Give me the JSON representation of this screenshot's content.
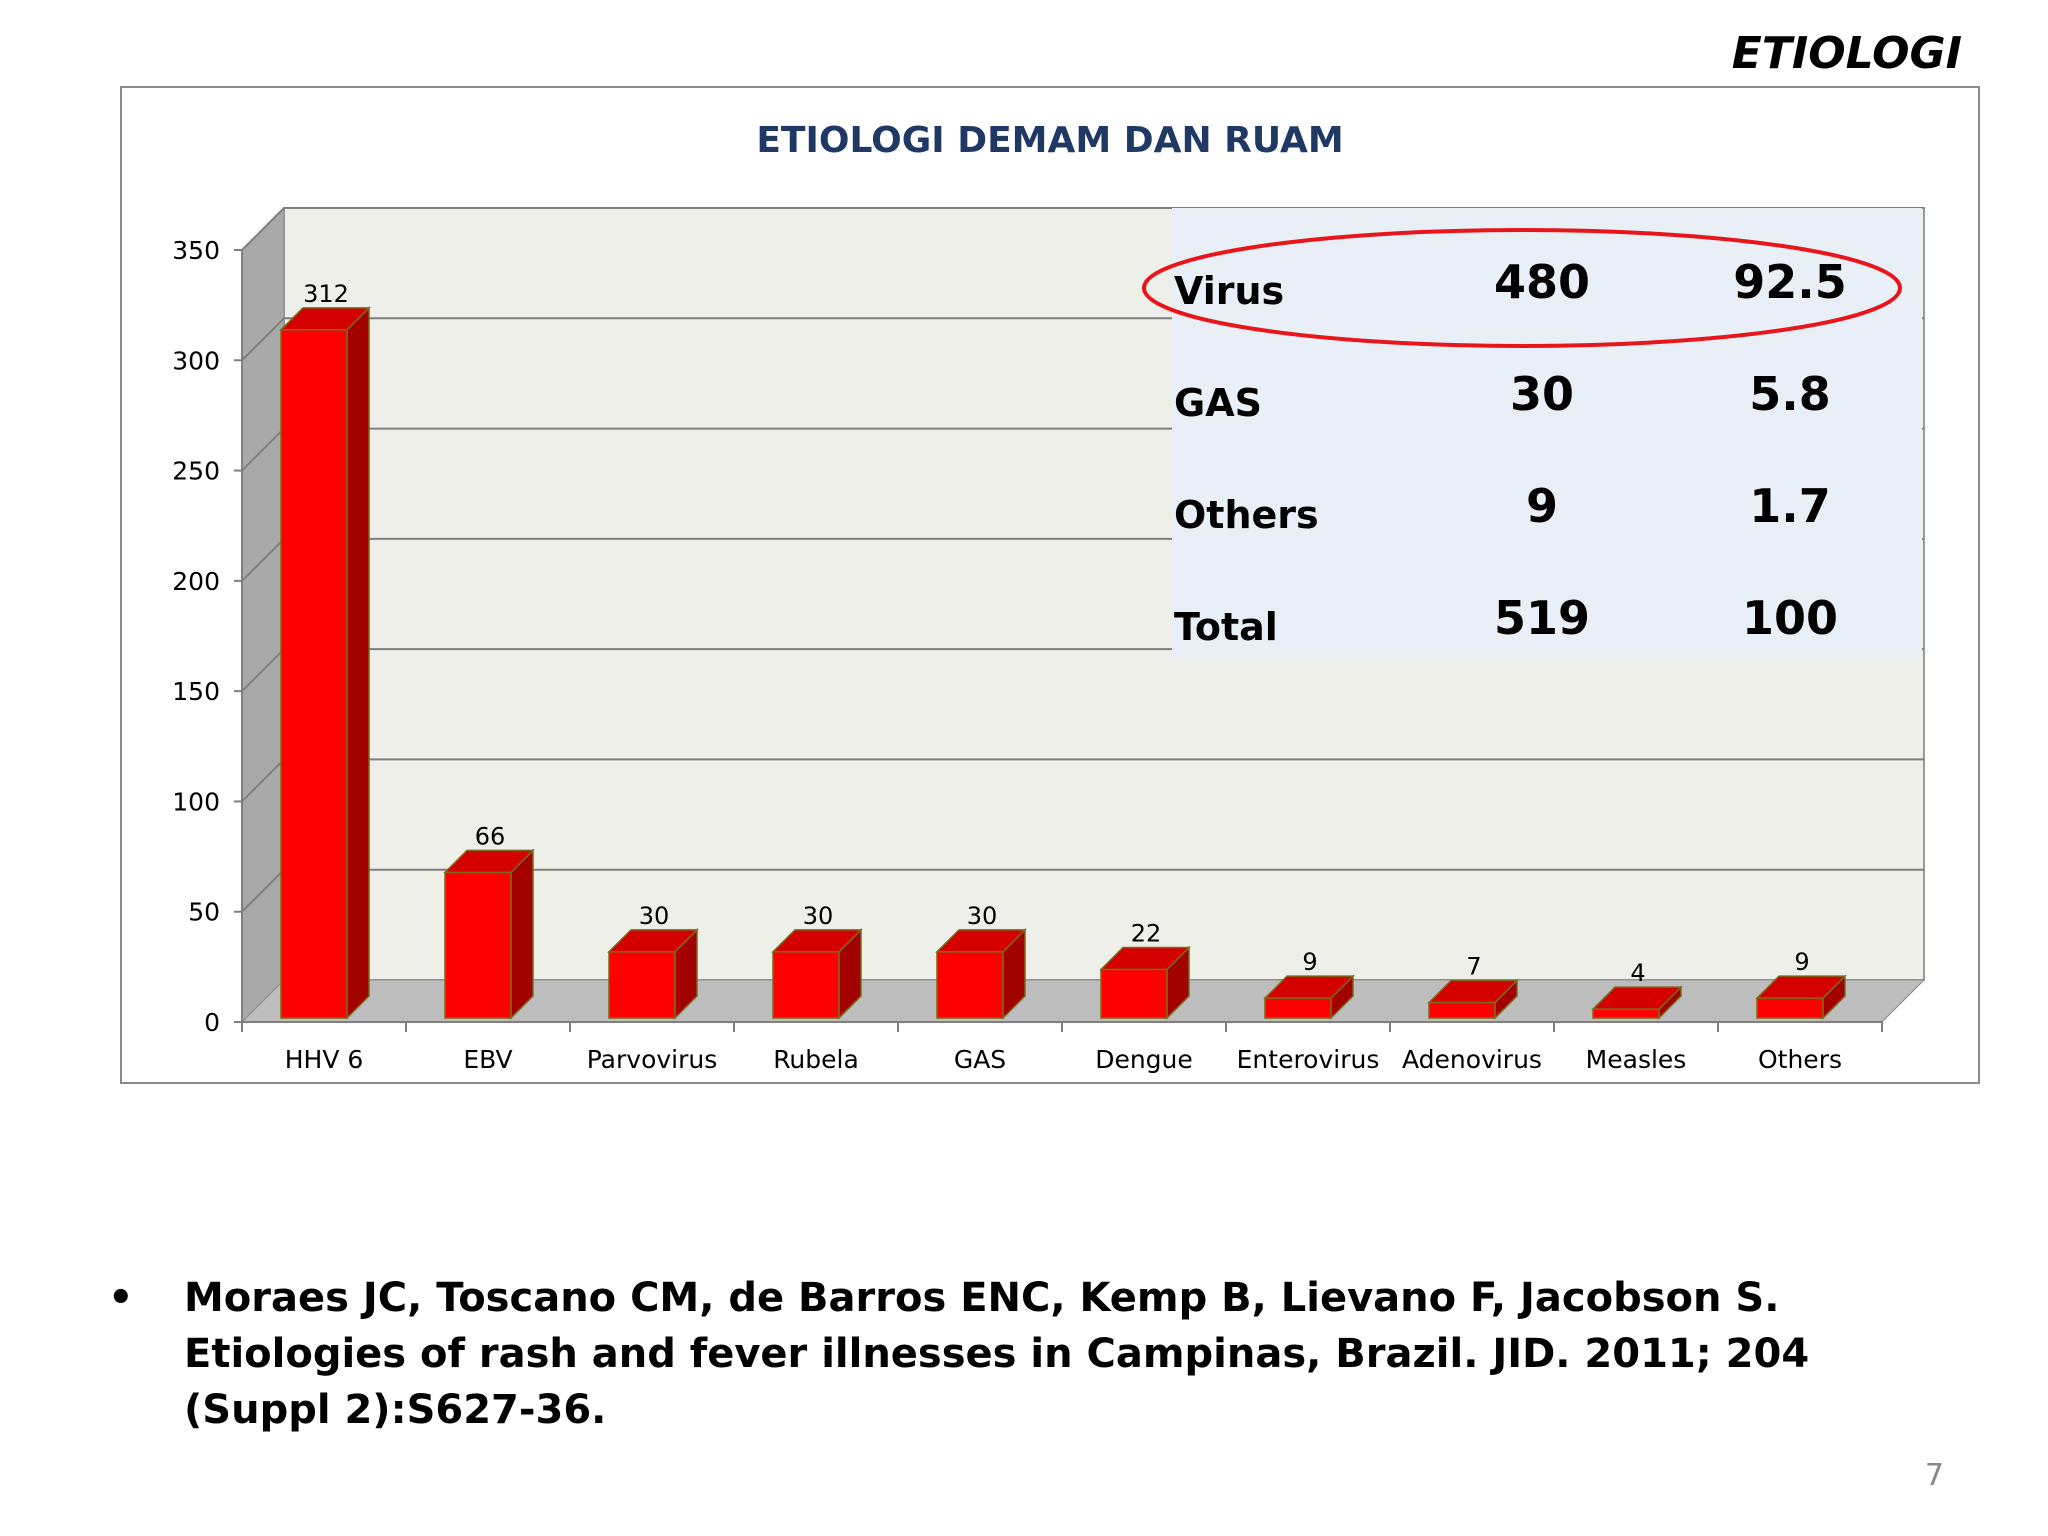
{
  "slide": {
    "heading": "ETIOLOGI",
    "page_number": "7",
    "citation": {
      "bullet": "•",
      "text": "Moraes JC, Toscano CM, de Barros ENC, Kemp B, Lievano F, Jacobson S. Etiologies of rash and fever illnesses in Campinas, Brazil. JID. 2011; 204 (Suppl 2):S627-36."
    }
  },
  "colors": {
    "bar_front": "#ff0000",
    "bar_side": "#a30000",
    "bar_top": "#d40000",
    "bar_edge": "#7a6a18",
    "title": "#1f3864",
    "inset_bg": "#e9eff6",
    "ellipse": "#e8151b",
    "wall": "#efefea",
    "left_wall": "#a9a9a9",
    "floor": "#bdbdbd"
  },
  "chart_data": {
    "type": "bar",
    "title": "ETIOLOGI DEMAM DAN RUAM",
    "categories": [
      "HHV 6",
      "EBV",
      "Parvovirus",
      "Rubela",
      "GAS",
      "Dengue",
      "Enterovirus",
      "Adenovirus",
      "Measles",
      "Others"
    ],
    "values": [
      312,
      66,
      30,
      30,
      30,
      22,
      9,
      7,
      4,
      9
    ],
    "ylim": [
      0,
      350
    ],
    "yticks": [
      0,
      50,
      100,
      150,
      200,
      250,
      300,
      350
    ],
    "grid": true,
    "style": "3d-column",
    "data_labels": true
  },
  "summary_table": {
    "rows": [
      {
        "label": "Virus",
        "count": "480",
        "percent": "92.5",
        "highlighted": true
      },
      {
        "label": "GAS",
        "count": "30",
        "percent": "5.8",
        "highlighted": false
      },
      {
        "label": "Others",
        "count": "9",
        "percent": "1.7",
        "highlighted": false
      },
      {
        "label": "Total",
        "count": "519",
        "percent": "100",
        "highlighted": false
      }
    ]
  }
}
